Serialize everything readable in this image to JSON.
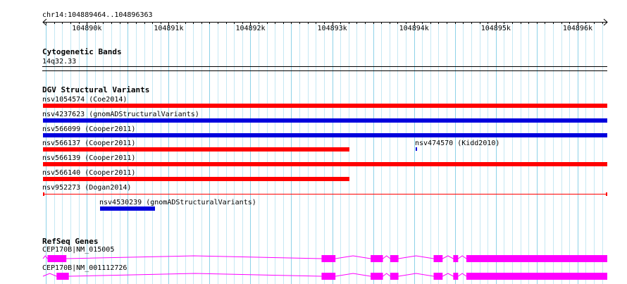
{
  "region": {
    "label": "chr14:104889464..104896363",
    "start": 104889464,
    "end": 104896363,
    "ticks": [
      {
        "pos": 104890000,
        "label": "104890k"
      },
      {
        "pos": 104891000,
        "label": "104891k"
      },
      {
        "pos": 104892000,
        "label": "104892k"
      },
      {
        "pos": 104893000,
        "label": "104893k"
      },
      {
        "pos": 104894000,
        "label": "104894k"
      },
      {
        "pos": 104895000,
        "label": "104895k"
      },
      {
        "pos": 104896000,
        "label": "104896k"
      }
    ]
  },
  "tracks": {
    "cytoband": {
      "title": "Cytogenetic Bands",
      "band": "14q32.33"
    },
    "dgv": {
      "title": "DGV Structural Variants",
      "variants": [
        {
          "label": "nsv1054574 (Coe2014)",
          "color": "#ff0000",
          "start": 104889464,
          "end": 104896363
        },
        {
          "label": "nsv4237623 (gnomADStructuralVariants)",
          "color": "#0000dd",
          "start": 104889464,
          "end": 104896363
        },
        {
          "label": "nsv566099 (Cooper2011)",
          "color": "#0000dd",
          "start": 104889464,
          "end": 104896363
        },
        {
          "label": "nsv566137 (Cooper2011)",
          "color": "#ff0000",
          "start": 104889464,
          "end": 104893210
        },
        {
          "label": "nsv474570 (Kidd2010)",
          "color": "#0000dd",
          "start": 104894020,
          "end": 104894040
        },
        {
          "label": "nsv566139 (Cooper2011)",
          "color": "#ff0000",
          "start": 104889464,
          "end": 104896363
        },
        {
          "label": "nsv566140 (Cooper2011)",
          "color": "#ff0000",
          "start": 104889464,
          "end": 104893210
        },
        {
          "label": "nsv952273 (Dogan2014)",
          "color": "#ff0000",
          "start": 104889464,
          "end": 104896363
        },
        {
          "label": "nsv4530239 (gnomADStructuralVariants)",
          "color": "#0000dd",
          "start": 104890160,
          "end": 104890830
        }
      ]
    },
    "refseq": {
      "title": "RefSeq Genes",
      "color": "#ff00ff",
      "genes": [
        {
          "label": "CEP170B|NM_015005",
          "exons": [
            [
              104889520,
              104889750
            ],
            [
              104892870,
              104893040
            ],
            [
              104893470,
              104893620
            ],
            [
              104893710,
              104893810
            ],
            [
              104894240,
              104894350
            ],
            [
              104894480,
              104894540
            ],
            [
              104894640,
              104896363
            ]
          ]
        },
        {
          "label": "CEP170B|NM_001112726",
          "exons": [
            [
              104889630,
              104889780
            ],
            [
              104892870,
              104893040
            ],
            [
              104893470,
              104893620
            ],
            [
              104893710,
              104893810
            ],
            [
              104894240,
              104894350
            ],
            [
              104894480,
              104894540
            ],
            [
              104894640,
              104896363
            ]
          ]
        }
      ]
    }
  }
}
